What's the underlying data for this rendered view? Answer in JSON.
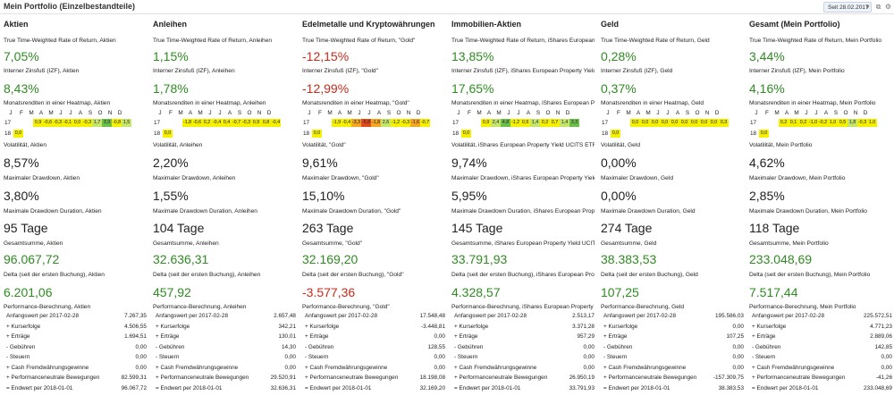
{
  "header": {
    "title": "Mein Portfolio (Einzelbestandteile)",
    "date_filter": "Seit 28.02.2017",
    "icons": [
      "dropdown-icon",
      "copy-icon",
      "settings-icon"
    ]
  },
  "heatmap_months": [
    "J",
    "F",
    "M",
    "A",
    "M",
    "J",
    "J",
    "A",
    "S",
    "O",
    "N",
    "D"
  ],
  "heatmap_colors": {
    "strong_green": "#6cc04a",
    "light_green": "#c6e66a",
    "yellow": "#f4f000",
    "orange": "#f5a623",
    "red": "#e24a1f"
  },
  "columns": [
    {
      "title": "Aktien",
      "twr_label": "True Time-Weighted Rate of Return, Aktien",
      "twr_value": "7,05%",
      "twr_sign": "pos",
      "irr_label": "Interner Zinsfuß (IZF), Aktien",
      "irr_value": "8,43%",
      "irr_sign": "pos",
      "heatmap_label": "Monatsrenditen in einer Heatmap, Aktien",
      "heatmap": {
        "years": [
          "17",
          "18"
        ],
        "row17": [
          "",
          "",
          "0,9",
          "-0,6",
          "-0,3",
          "-0,1",
          "0,0",
          "-0,3",
          "1,7",
          "3,9",
          "-0,8",
          "1,5"
        ],
        "row17_colors": [
          "",
          "",
          "yellow",
          "yellow",
          "yellow",
          "yellow",
          "yellow",
          "yellow",
          "light_green",
          "strong_green",
          "yellow",
          "light_green"
        ],
        "row18": [
          "0,0"
        ],
        "row18_colors": [
          "yellow"
        ]
      },
      "volatility_label": "Volatilität, Aktien",
      "volatility_value": "8,57%",
      "max_drawdown_label": "Maximaler Drawdown, Aktien",
      "max_drawdown_value": "3,80%",
      "drawdown_duration_label": "Maximale Drawdown Duration, Aktien",
      "drawdown_duration_value": "95 Tage",
      "total_label": "Gesamtsumme, Aktien",
      "total_value": "96.067,72",
      "total_sign": "pos",
      "delta_label": "Delta (seit der ersten Buchung), Aktien",
      "delta_value": "6.201,06",
      "delta_sign": "pos",
      "perf_label": "Performance-Berechnung, Aktien",
      "perf_rows": [
        {
          "label": "Anfangswert per 2017-02-28",
          "value": "7.267,35"
        },
        {
          "label": "+  Kurserfolge",
          "value": "4.506,55"
        },
        {
          "label": "+  Erträge",
          "value": "1.694,51"
        },
        {
          "label": "-   Gebühren",
          "value": "0,00"
        },
        {
          "label": "-   Steuern",
          "value": "0,00"
        },
        {
          "label": "+  Cash Fremdwährungsgewinne",
          "value": "0,00"
        },
        {
          "label": "+  Performanceneutrale Bewegungen",
          "value": "82.599,31"
        },
        {
          "label": "=  Endwert per 2018-01-01",
          "value": "96.067,72"
        }
      ]
    },
    {
      "title": "Anleihen",
      "twr_label": "True Time-Weighted Rate of Return, Anleihen",
      "twr_value": "1,15%",
      "twr_sign": "pos",
      "irr_label": "Interner Zinsfuß (IZF), Anleihen",
      "irr_value": "1,78%",
      "irr_sign": "pos",
      "heatmap_label": "Monatsrenditen in einer Heatmap, Anleihen",
      "heatmap": {
        "years": [
          "17",
          "18"
        ],
        "row17": [
          "",
          "",
          "-1,8",
          "-0,6",
          "0,2",
          "-0,4",
          "0,4",
          "-0,7",
          "-0,3",
          "0,9",
          "0,8",
          "-0,4"
        ],
        "row17_colors": [
          "",
          "",
          "yellow",
          "yellow",
          "yellow",
          "yellow",
          "yellow",
          "yellow",
          "yellow",
          "yellow",
          "yellow",
          "yellow"
        ],
        "row18": [
          "0,0"
        ],
        "row18_colors": [
          "yellow"
        ]
      },
      "volatility_label": "Volatilität, Anleihen",
      "volatility_value": "2,20%",
      "max_drawdown_label": "Maximaler Drawdown, Anleihen",
      "max_drawdown_value": "1,55%",
      "drawdown_duration_label": "Maximale Drawdown Duration, Anleihen",
      "drawdown_duration_value": "104 Tage",
      "total_label": "Gesamtsumme, Anleihen",
      "total_value": "32.636,31",
      "total_sign": "pos",
      "delta_label": "Delta (seit der ersten Buchung), Anleihen",
      "delta_value": "457,92",
      "delta_sign": "pos",
      "perf_label": "Performance-Berechnung, Anleihen",
      "perf_rows": [
        {
          "label": "Anfangswert per 2017-02-28",
          "value": "2.657,48"
        },
        {
          "label": "+  Kurserfolge",
          "value": "342,21"
        },
        {
          "label": "+  Erträge",
          "value": "130,01"
        },
        {
          "label": "-   Gebühren",
          "value": "14,30"
        },
        {
          "label": "-   Steuern",
          "value": "0,00"
        },
        {
          "label": "+  Cash Fremdwährungsgewinne",
          "value": "0,00"
        },
        {
          "label": "+  Performanceneutrale Bewegungen",
          "value": "29.520,91"
        },
        {
          "label": "=  Endwert per 2018-01-01",
          "value": "32.636,31"
        }
      ]
    },
    {
      "title": "Edelmetalle und Kryptowährungen",
      "twr_label": "True Time-Weighted Rate of Return, \"Gold\"",
      "twr_value": "-12,15%",
      "twr_sign": "neg",
      "irr_label": "Interner Zinsfuß (IZF), \"Gold\"",
      "irr_value": "-12,99%",
      "irr_sign": "neg",
      "heatmap_label": "Monatsrenditen in einer Heatmap, \"Gold\"",
      "heatmap": {
        "years": [
          "17",
          "18"
        ],
        "row17": [
          "",
          "",
          "-1,9",
          "-0,4",
          "-3,3",
          "-5,8",
          "-1,8",
          "2,6",
          "-1,2",
          "-0,3",
          "-1,6",
          "-0,7"
        ],
        "row17_colors": [
          "",
          "",
          "yellow",
          "yellow",
          "orange",
          "red",
          "orange",
          "light_green",
          "yellow",
          "yellow",
          "orange",
          "yellow"
        ],
        "row18": [
          "0,0"
        ],
        "row18_colors": [
          "yellow"
        ]
      },
      "volatility_label": "Volatilität, \"Gold\"",
      "volatility_value": "9,61%",
      "max_drawdown_label": "Maximaler Drawdown, \"Gold\"",
      "max_drawdown_value": "15,10%",
      "drawdown_duration_label": "Maximale Drawdown Duration, \"Gold\"",
      "drawdown_duration_value": "263 Tage",
      "total_label": "Gesamtsumme, \"Gold\"",
      "total_value": "32.169,20",
      "total_sign": "pos",
      "delta_label": "Delta (seit der ersten Buchung), \"Gold\"",
      "delta_value": "-3.577,36",
      "delta_sign": "neg",
      "perf_label": "Performance-Berechnung, \"Gold\"",
      "perf_rows": [
        {
          "label": "Anfangswert per 2017-02-28",
          "value": "17.548,48"
        },
        {
          "label": "+  Kurserfolge",
          "value": "-3.448,81"
        },
        {
          "label": "+  Erträge",
          "value": "0,00"
        },
        {
          "label": "-   Gebühren",
          "value": "128,55"
        },
        {
          "label": "-   Steuern",
          "value": "0,00"
        },
        {
          "label": "+  Cash Fremdwährungsgewinne",
          "value": "0,00"
        },
        {
          "label": "+  Performanceneutrale Bewegungen",
          "value": "18.198,08"
        },
        {
          "label": "=  Endwert per 2018-01-01",
          "value": "32.169,20"
        }
      ]
    },
    {
      "title": "Immobilien-Aktien",
      "twr_label": "True Time-Weighted Rate of Return, iShares European Pro",
      "twr_value": "13,85%",
      "twr_sign": "pos",
      "irr_label": "Interner Zinsfuß (IZF), iShares European Property Yield UC",
      "irr_value": "17,65%",
      "irr_sign": "pos",
      "heatmap_label": "Monatsrenditen in einer Heatmap, iShares European Prop",
      "heatmap": {
        "years": [
          "17",
          "18"
        ],
        "row17": [
          "",
          "",
          "0,9",
          "2,4",
          "4,8",
          "-1,2",
          "0,9",
          "1,4",
          "0,2",
          "0,7",
          "1,4",
          "3,3"
        ],
        "row17_colors": [
          "",
          "",
          "yellow",
          "light_green",
          "strong_green",
          "yellow",
          "yellow",
          "light_green",
          "yellow",
          "yellow",
          "light_green",
          "strong_green"
        ],
        "row18": [
          "0,0"
        ],
        "row18_colors": [
          "yellow"
        ]
      },
      "volatility_label": "Volatilität, iShares European Property Yield UCITS ETF",
      "volatility_value": "9,74%",
      "max_drawdown_label": "Maximaler Drawdown, iShares European Property Yield U",
      "max_drawdown_value": "5,95%",
      "drawdown_duration_label": "Maximale Drawdown Duration, iShares European Prope",
      "drawdown_duration_value": "145 Tage",
      "total_label": "Gesamtsumme, iShares European Property Yield UCITS E",
      "total_value": "33.791,93",
      "total_sign": "pos",
      "delta_label": "Delta (seit der ersten Buchung), iShares European Prop",
      "delta_value": "4.328,57",
      "delta_sign": "pos",
      "perf_label": "Performance-Berechnung, iShares European Property Yie",
      "perf_rows": [
        {
          "label": "Anfangswert per 2017-02-28",
          "value": "2.513,17"
        },
        {
          "label": "+  Kurserfolge",
          "value": "3.371,28"
        },
        {
          "label": "+  Erträge",
          "value": "957,29"
        },
        {
          "label": "-   Gebühren",
          "value": "0,00"
        },
        {
          "label": "-   Steuern",
          "value": "0,00"
        },
        {
          "label": "+  Cash Fremdwährungsgewinne",
          "value": "0,00"
        },
        {
          "label": "+  Performanceneutrale Bewegungen",
          "value": "26.950,19"
        },
        {
          "label": "=  Endwert per 2018-01-01",
          "value": "33.791,93"
        }
      ]
    },
    {
      "title": "Geld",
      "twr_label": "True Time-Weighted Rate of Return, Geld",
      "twr_value": "0,28%",
      "twr_sign": "pos",
      "irr_label": "Interner Zinsfuß (IZF), Geld",
      "irr_value": "0,37%",
      "irr_sign": "pos",
      "heatmap_label": "Monatsrenditen in einer Heatmap, Geld",
      "heatmap": {
        "years": [
          "17",
          "18"
        ],
        "row17": [
          "",
          "",
          "0,0",
          "0,0",
          "0,0",
          "0,0",
          "0,0",
          "0,0",
          "0,0",
          "0,0",
          "0,0",
          "0,3"
        ],
        "row17_colors": [
          "",
          "",
          "yellow",
          "yellow",
          "yellow",
          "yellow",
          "yellow",
          "yellow",
          "yellow",
          "yellow",
          "yellow",
          "yellow"
        ],
        "row18": [
          "0,0"
        ],
        "row18_colors": [
          "yellow"
        ]
      },
      "volatility_label": "Volatilität, Geld",
      "volatility_value": "0,00%",
      "max_drawdown_label": "Maximaler Drawdown, Geld",
      "max_drawdown_value": "0,00%",
      "drawdown_duration_label": "Maximale Drawdown Duration, Geld",
      "drawdown_duration_value": "274 Tage",
      "total_label": "Gesamtsumme, Geld",
      "total_value": "38.383,53",
      "total_sign": "pos",
      "delta_label": "Delta (seit der ersten Buchung), Geld",
      "delta_value": "107,25",
      "delta_sign": "pos",
      "perf_label": "Performance-Berechnung, Geld",
      "perf_rows": [
        {
          "label": "Anfangswert per 2017-02-28",
          "value": "195.586,03"
        },
        {
          "label": "+  Kurserfolge",
          "value": "0,00"
        },
        {
          "label": "+  Erträge",
          "value": "107,25"
        },
        {
          "label": "-   Gebühren",
          "value": "0,00"
        },
        {
          "label": "-   Steuern",
          "value": "0,00"
        },
        {
          "label": "+  Cash Fremdwährungsgewinne",
          "value": "0,00"
        },
        {
          "label": "+  Performanceneutrale Bewegungen",
          "value": "-157.309,75"
        },
        {
          "label": "=  Endwert per 2018-01-01",
          "value": "38.383,53"
        }
      ]
    },
    {
      "title": "Gesamt (Mein Portfolio)",
      "twr_label": "True Time-Weighted Rate of Return, Mein Portfolio",
      "twr_value": "3,44%",
      "twr_sign": "pos",
      "irr_label": "Interner Zinsfuß (IZF), Mein Portfolio",
      "irr_value": "4,16%",
      "irr_sign": "pos",
      "heatmap_label": "Monatsrenditen in einer Heatmap, Mein Portfolio",
      "heatmap": {
        "years": [
          "17",
          "18"
        ],
        "row17": [
          "",
          "",
          "0,2",
          "0,1",
          "0,2",
          "-1,0",
          "-0,2",
          "1,0",
          "0,5",
          "1,8",
          "-0,3",
          "1,0"
        ],
        "row17_colors": [
          "",
          "",
          "yellow",
          "yellow",
          "yellow",
          "yellow",
          "yellow",
          "yellow",
          "yellow",
          "light_green",
          "yellow",
          "yellow"
        ],
        "row18": [
          "0,0"
        ],
        "row18_colors": [
          "yellow"
        ]
      },
      "volatility_label": "Volatilität, Mein Portfolio",
      "volatility_value": "4,62%",
      "max_drawdown_label": "Maximaler Drawdown, Mein Portfolio",
      "max_drawdown_value": "2,85%",
      "drawdown_duration_label": "Maximale Drawdown Duration, Mein Portfolio",
      "drawdown_duration_value": "118 Tage",
      "total_label": "Gesamtsumme, Mein Portfolio",
      "total_value": "233.048,69",
      "total_sign": "pos",
      "delta_label": "Delta (seit der ersten Buchung), Mein Portfolio",
      "delta_value": "7.517,44",
      "delta_sign": "pos",
      "perf_label": "Performance-Berechnung, Mein Portfolio",
      "perf_rows": [
        {
          "label": "Anfangswert per 2017-02-28",
          "value": "225.572,51"
        },
        {
          "label": "+  Kurserfolge",
          "value": "4.771,23"
        },
        {
          "label": "+  Erträge",
          "value": "2.889,06"
        },
        {
          "label": "-   Gebühren",
          "value": "142,85"
        },
        {
          "label": "-   Steuern",
          "value": "0,00"
        },
        {
          "label": "+  Cash Fremdwährungsgewinne",
          "value": "0,00"
        },
        {
          "label": "+  Performanceneutrale Bewegungen",
          "value": "-41,26"
        },
        {
          "label": "=  Endwert per 2018-01-01",
          "value": "233.048,69"
        }
      ]
    }
  ]
}
